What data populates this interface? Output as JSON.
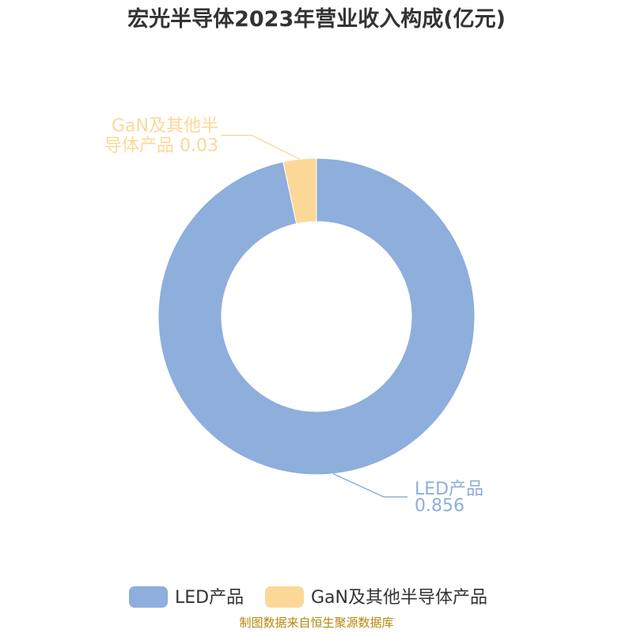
{
  "chart_data": {
    "type": "pie",
    "title": "宏光半导体2023年营业收入构成(亿元)",
    "inner_radius_ratio": 0.6,
    "slices": [
      {
        "name": "LED产品",
        "value": 0.856,
        "value_label": "0.856",
        "color": "#8eaedb"
      },
      {
        "name": "GaN及其他半导体产品",
        "value": 0.03,
        "value_label": "0.03",
        "color": "#fcd898"
      }
    ],
    "slice_labels": [
      [
        "LED产品",
        "0.856"
      ],
      [
        "GaN及其他半",
        "导体产品 0.03"
      ]
    ],
    "legend": {
      "position": "bottom",
      "items": [
        "LED产品",
        "GaN及其他半导体产品"
      ]
    },
    "source": "制图数据来自恒生聚源数据库"
  }
}
